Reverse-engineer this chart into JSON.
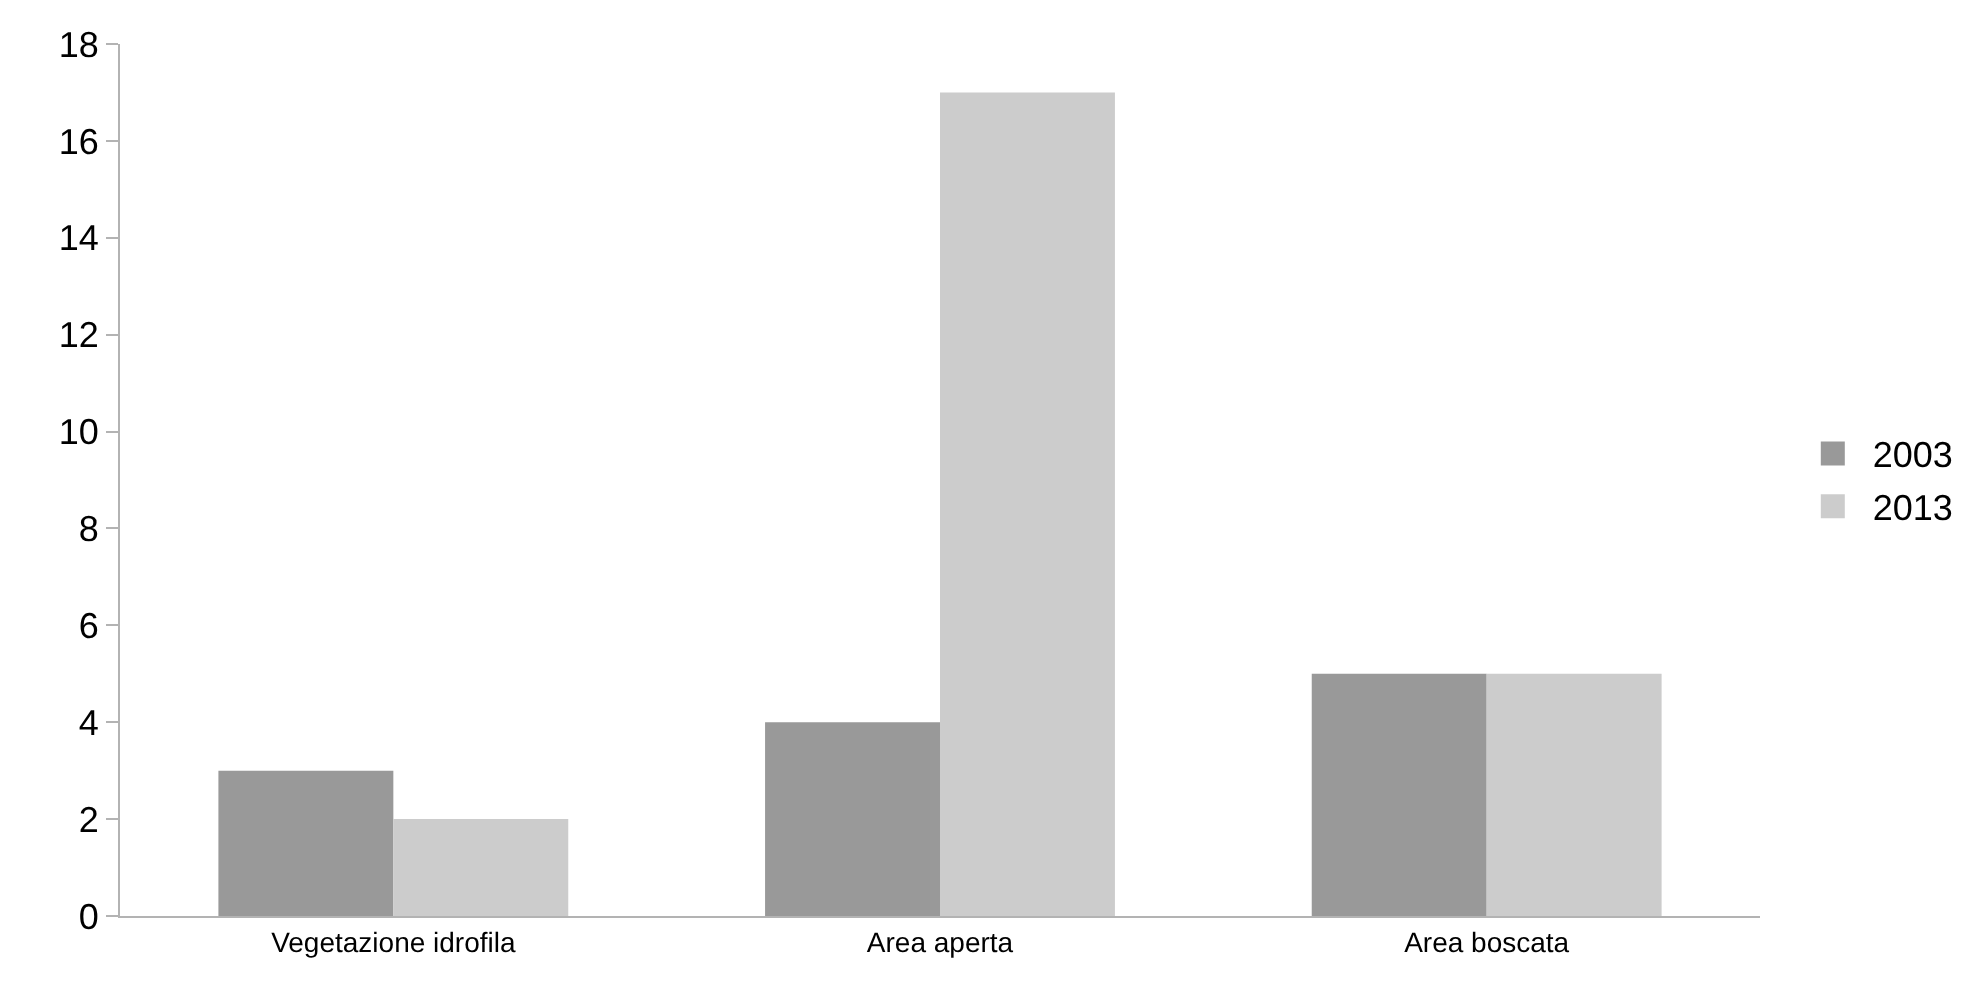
{
  "chart_data": {
    "type": "bar",
    "categories": [
      "Vegetazione idrofila",
      "Area aperta",
      "Area boscata"
    ],
    "series": [
      {
        "name": "2003",
        "color": "#999999",
        "values": [
          3,
          4,
          5
        ]
      },
      {
        "name": "2013",
        "color": "#cccccc",
        "values": [
          2,
          17,
          5
        ]
      }
    ],
    "ylim": [
      0,
      18
    ],
    "yticks": [
      0,
      2,
      4,
      6,
      8,
      10,
      12,
      14,
      16,
      18
    ],
    "legend": "right"
  }
}
